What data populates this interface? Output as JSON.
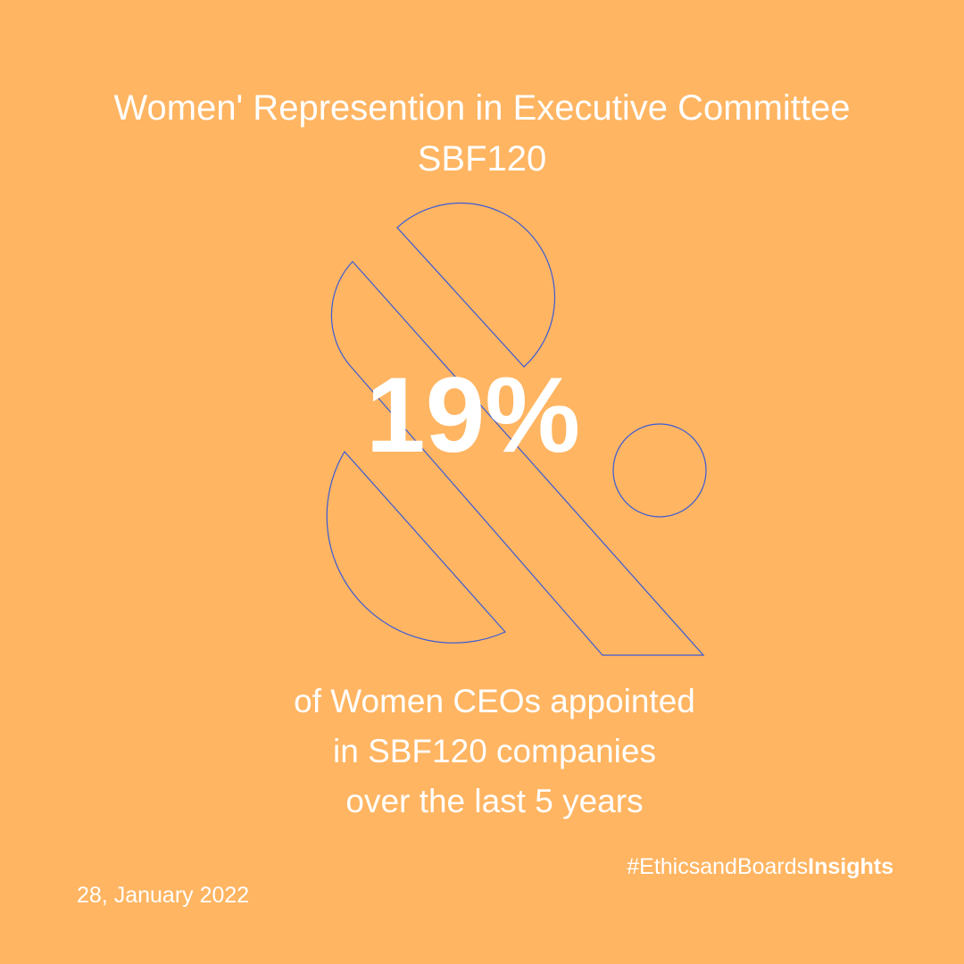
{
  "title": {
    "line1": "Women' Represention in Executive Committee",
    "line2": "SBF120"
  },
  "stat": {
    "value": "19%"
  },
  "caption": {
    "line1": "of Women CEOs appointed",
    "line2": "in SBF120 companies",
    "line3": "over the last 5 years"
  },
  "hashtag": {
    "prefix": "#EthicsandBoards",
    "bold": "Insights"
  },
  "date": "28, January 2022",
  "colors": {
    "background": "#FFB562",
    "text": "#FFFFFF",
    "outline": "#3B5BD6"
  },
  "graphic": {
    "icon": "ampersand-logo-icon"
  }
}
